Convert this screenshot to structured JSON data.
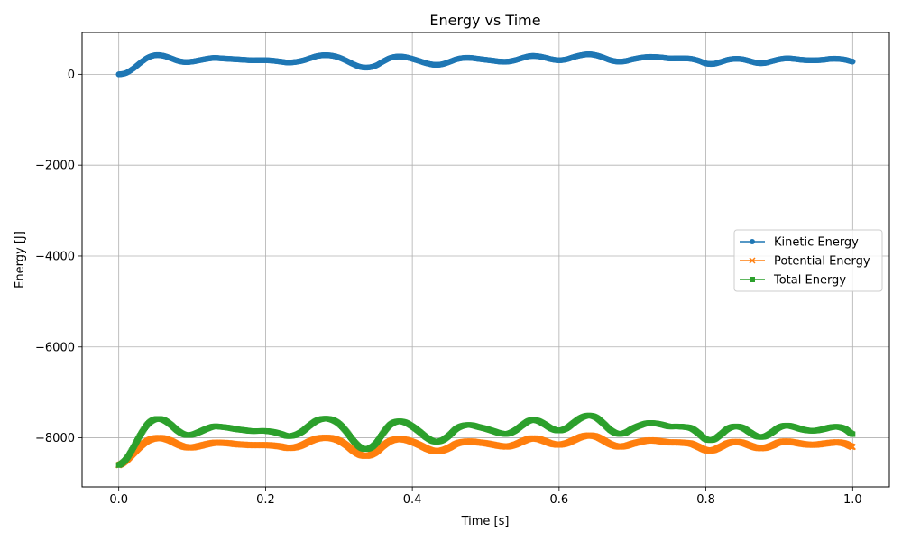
{
  "chart_data": {
    "type": "line",
    "title": "Energy vs Time",
    "xlabel": "Time [s]",
    "ylabel": "Energy [J]",
    "xlim": [
      -0.05,
      1.05
    ],
    "ylim": [
      -9080,
      920
    ],
    "xticks": [
      0.0,
      0.2,
      0.4,
      0.6,
      0.8,
      1.0
    ],
    "xtick_labels": [
      "0.0",
      "0.2",
      "0.4",
      "0.6",
      "0.8",
      "1.0"
    ],
    "yticks": [
      0,
      -2000,
      -4000,
      -6000,
      -8000
    ],
    "ytick_labels": [
      "0",
      "−2000",
      "−4000",
      "−6000",
      "−8000"
    ],
    "grid": true,
    "legend_position": "center-right",
    "x": [
      0.0,
      0.01,
      0.02,
      0.03,
      0.04,
      0.05,
      0.06,
      0.07,
      0.08,
      0.09,
      0.1,
      0.11,
      0.12,
      0.13,
      0.14,
      0.15,
      0.16,
      0.17,
      0.18,
      0.19,
      0.2,
      0.21,
      0.22,
      0.23,
      0.24,
      0.25,
      0.26,
      0.27,
      0.28,
      0.29,
      0.3,
      0.31,
      0.32,
      0.33,
      0.34,
      0.35,
      0.36,
      0.37,
      0.38,
      0.39,
      0.4,
      0.41,
      0.42,
      0.43,
      0.44,
      0.45,
      0.46,
      0.47,
      0.48,
      0.49,
      0.5,
      0.51,
      0.52,
      0.53,
      0.54,
      0.55,
      0.56,
      0.57,
      0.58,
      0.59,
      0.6,
      0.61,
      0.62,
      0.63,
      0.64,
      0.65,
      0.66,
      0.67,
      0.68,
      0.69,
      0.7,
      0.71,
      0.72,
      0.73,
      0.74,
      0.75,
      0.76,
      0.77,
      0.78,
      0.79,
      0.8,
      0.81,
      0.82,
      0.83,
      0.84,
      0.85,
      0.86,
      0.87,
      0.88,
      0.89,
      0.9,
      0.91,
      0.92,
      0.93,
      0.94,
      0.95,
      0.96,
      0.97,
      0.98,
      0.99,
      1.0
    ],
    "series": [
      {
        "name": "Kinetic Energy",
        "color": "#1f77b4",
        "marker": "circle",
        "values": [
          0,
          30,
          130,
          260,
          370,
          420,
          410,
          360,
          300,
          270,
          280,
          310,
          340,
          360,
          350,
          340,
          330,
          320,
          310,
          310,
          310,
          300,
          280,
          260,
          270,
          300,
          350,
          400,
          420,
          410,
          370,
          300,
          220,
          160,
          150,
          190,
          280,
          360,
          390,
          380,
          340,
          290,
          240,
          210,
          220,
          270,
          330,
          360,
          360,
          340,
          320,
          300,
          280,
          280,
          310,
          360,
          400,
          400,
          370,
          330,
          310,
          330,
          380,
          420,
          440,
          420,
          370,
          310,
          280,
          290,
          330,
          360,
          380,
          380,
          370,
          350,
          350,
          350,
          340,
          300,
          240,
          230,
          270,
          320,
          340,
          330,
          290,
          250,
          250,
          290,
          330,
          350,
          340,
          320,
          310,
          310,
          320,
          340,
          340,
          320,
          280
        ]
      },
      {
        "name": "Potential Energy",
        "color": "#ff7f0e",
        "marker": "x",
        "values": [
          -8600,
          -8500,
          -8340,
          -8180,
          -8060,
          -8010,
          -8010,
          -8060,
          -8140,
          -8200,
          -8210,
          -8180,
          -8140,
          -8110,
          -8110,
          -8120,
          -8140,
          -8150,
          -8160,
          -8160,
          -8160,
          -8170,
          -8190,
          -8220,
          -8210,
          -8160,
          -8080,
          -8020,
          -8000,
          -8010,
          -8060,
          -8160,
          -8290,
          -8380,
          -8390,
          -8320,
          -8180,
          -8070,
          -8030,
          -8040,
          -8090,
          -8160,
          -8240,
          -8290,
          -8280,
          -8220,
          -8130,
          -8090,
          -8080,
          -8100,
          -8120,
          -8150,
          -8180,
          -8190,
          -8150,
          -8080,
          -8020,
          -8020,
          -8070,
          -8130,
          -8150,
          -8120,
          -8050,
          -7980,
          -7950,
          -7970,
          -8050,
          -8140,
          -8190,
          -8180,
          -8130,
          -8090,
          -8060,
          -8060,
          -8080,
          -8100,
          -8100,
          -8110,
          -8130,
          -8200,
          -8270,
          -8270,
          -8200,
          -8120,
          -8090,
          -8110,
          -8170,
          -8220,
          -8220,
          -8170,
          -8100,
          -8080,
          -8100,
          -8130,
          -8150,
          -8150,
          -8130,
          -8110,
          -8100,
          -8130,
          -8200
        ]
      },
      {
        "name": "Total Energy",
        "color": "#2ca02c",
        "marker": "square",
        "values": [
          -8600,
          -8470,
          -8210,
          -7920,
          -7690,
          -7590,
          -7600,
          -7700,
          -7840,
          -7930,
          -7930,
          -7870,
          -7800,
          -7750,
          -7760,
          -7780,
          -7810,
          -7830,
          -7850,
          -7850,
          -7850,
          -7870,
          -7910,
          -7960,
          -7940,
          -7860,
          -7730,
          -7620,
          -7580,
          -7600,
          -7690,
          -7860,
          -8070,
          -8220,
          -8240,
          -8130,
          -7900,
          -7710,
          -7640,
          -7660,
          -7750,
          -7870,
          -8000,
          -8080,
          -8060,
          -7950,
          -7800,
          -7730,
          -7720,
          -7760,
          -7800,
          -7850,
          -7900,
          -7910,
          -7840,
          -7720,
          -7620,
          -7620,
          -7700,
          -7800,
          -7840,
          -7790,
          -7670,
          -7560,
          -7510,
          -7550,
          -7680,
          -7830,
          -7910,
          -7890,
          -7800,
          -7730,
          -7680,
          -7680,
          -7710,
          -7750,
          -7750,
          -7760,
          -7790,
          -7900,
          -8030,
          -8040,
          -7930,
          -7800,
          -7750,
          -7780,
          -7880,
          -7970,
          -7970,
          -7880,
          -7770,
          -7730,
          -7760,
          -7810,
          -7840,
          -7840,
          -7810,
          -7770,
          -7760,
          -7810,
          -7920
        ]
      }
    ]
  }
}
